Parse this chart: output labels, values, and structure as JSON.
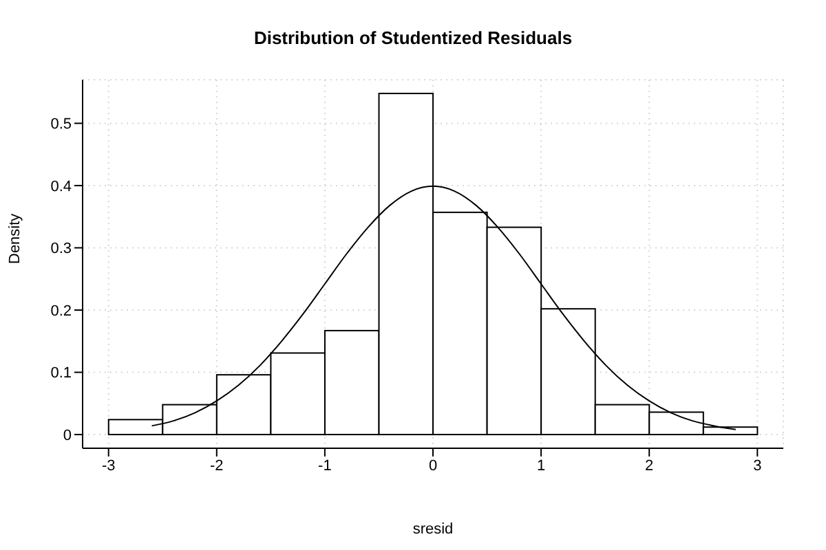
{
  "chart_data": {
    "type": "histogram",
    "title": "Distribution of Studentized Residuals",
    "xlabel": "sresid",
    "ylabel": "Density",
    "bins": [
      -3,
      -2.5,
      -2,
      -1.5,
      -1,
      -0.5,
      0,
      0.5,
      1,
      1.5,
      2,
      2.5,
      3
    ],
    "values": [
      0.024,
      0.048,
      0.096,
      0.131,
      0.167,
      0.548,
      0.357,
      0.333,
      0.202,
      0.048,
      0.036,
      0.012
    ],
    "color": "#ffffff",
    "series": [
      {
        "type": "line",
        "color": "#000000",
        "x": [
          -2.6,
          -2.4,
          -2.2,
          -2,
          -1.8,
          -1.6,
          -1.4,
          -1.2,
          -1,
          -0.8,
          -0.6,
          -0.4,
          -0.2,
          0,
          0.2,
          0.4,
          0.6,
          0.8,
          1,
          1.2,
          1.4,
          1.6,
          1.8,
          2,
          2.2,
          2.4,
          2.6,
          2.8
        ],
        "values": [
          0.014,
          0.022,
          0.035,
          0.054,
          0.079,
          0.111,
          0.15,
          0.194,
          0.242,
          0.29,
          0.333,
          0.368,
          0.391,
          0.399,
          0.391,
          0.368,
          0.333,
          0.29,
          0.242,
          0.194,
          0.15,
          0.111,
          0.079,
          0.054,
          0.035,
          0.022,
          0.014,
          0.008
        ]
      }
    ],
    "xlim": [
      -3.24,
      3.24
    ],
    "xticks": [
      -3,
      -2,
      -1,
      0,
      1,
      2,
      3
    ],
    "ylim": [
      -0.022,
      0.57
    ],
    "yticks": [
      0,
      0.1,
      0.2,
      0.3,
      0.4,
      0.5
    ],
    "grid": true,
    "marker": "none"
  }
}
